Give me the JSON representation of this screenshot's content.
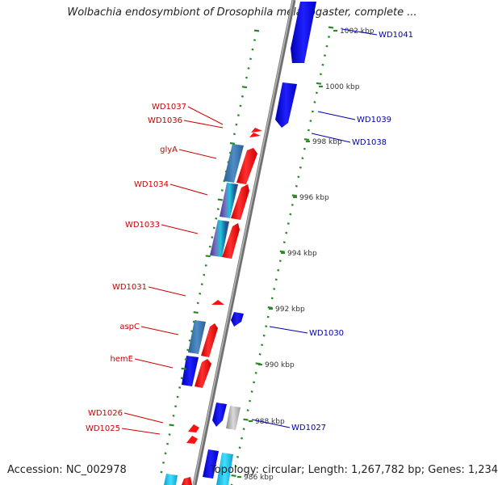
{
  "title": "Wolbachia endosymbiont of Drosophila melanogaster, complete ...",
  "footer": {
    "accession": "Accession: NC_002978",
    "topology": "Topology: circular; Length: 1,267,782 bp; Genes: 1,234"
  },
  "colors": {
    "backbone": "#8a8a8a",
    "tick": "#2a8a2a",
    "forward_label": "#cc0000",
    "reverse_label": "#0000aa",
    "forward_gene": "#ff0000",
    "reverse_gene": "#0000ee"
  },
  "kbp_labels": [
    {
      "kbp": 1002,
      "text": "1002 kbp"
    },
    {
      "kbp": 1000,
      "text": "1000 kbp"
    },
    {
      "kbp": 998,
      "text": "998 kbp"
    },
    {
      "kbp": 996,
      "text": "996 kbp"
    },
    {
      "kbp": 994,
      "text": "994 kbp"
    },
    {
      "kbp": 992,
      "text": "992 kbp"
    },
    {
      "kbp": 990,
      "text": "990 kbp"
    },
    {
      "kbp": 988,
      "text": "988 kbp"
    },
    {
      "kbp": 986,
      "text": "986 kbp"
    }
  ],
  "forward_genes": [
    {
      "name": "WD1037"
    },
    {
      "name": "WD1036"
    },
    {
      "name": "glyA"
    },
    {
      "name": "WD1034"
    },
    {
      "name": "WD1033"
    },
    {
      "name": "WD1031"
    },
    {
      "name": "aspC"
    },
    {
      "name": "hemE"
    },
    {
      "name": "WD1026"
    },
    {
      "name": "WD1025"
    }
  ],
  "reverse_genes": [
    {
      "name": "WD1041"
    },
    {
      "name": "WD1039"
    },
    {
      "name": "WD1038"
    },
    {
      "name": "WD1030"
    },
    {
      "name": "WD1027"
    }
  ]
}
